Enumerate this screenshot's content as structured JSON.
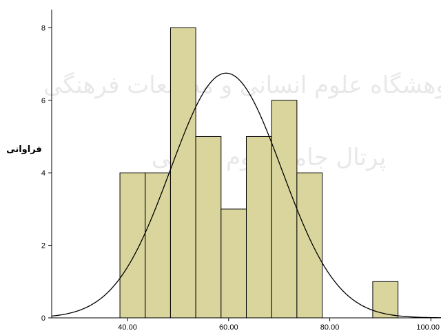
{
  "chart_data": {
    "type": "bar",
    "title": "",
    "xlabel": "",
    "ylabel": "فراوانی",
    "bin_edges": [
      38.5,
      43.5,
      48.5,
      53.5,
      58.5,
      63.5,
      68.5,
      73.5,
      78.5,
      83.5,
      88.5,
      93.5
    ],
    "values": [
      4,
      4,
      8,
      5,
      3,
      5,
      6,
      4,
      0,
      0,
      1
    ],
    "normal_curve": {
      "mean": 59.5,
      "sd": 11.0,
      "peak": 6.75
    },
    "xlim": [
      25,
      102
    ],
    "ylim": [
      0,
      8.5
    ],
    "x_ticks": [
      "40.00",
      "60.00",
      "80.00",
      "100.00"
    ],
    "x_tick_values": [
      40,
      60,
      80,
      100
    ],
    "y_ticks": [
      0,
      2,
      4,
      6,
      8
    ],
    "bar_color": "#d9d59d",
    "bar_edge_color": "#000000",
    "curve_color": "#000000",
    "plot_background": "#ffffff",
    "grid": false,
    "watermark_lines": [
      "پژوهشگاه علوم انسانی و مطالعات فرهنگی",
      "پرتال جامع علوم انسانی"
    ]
  }
}
